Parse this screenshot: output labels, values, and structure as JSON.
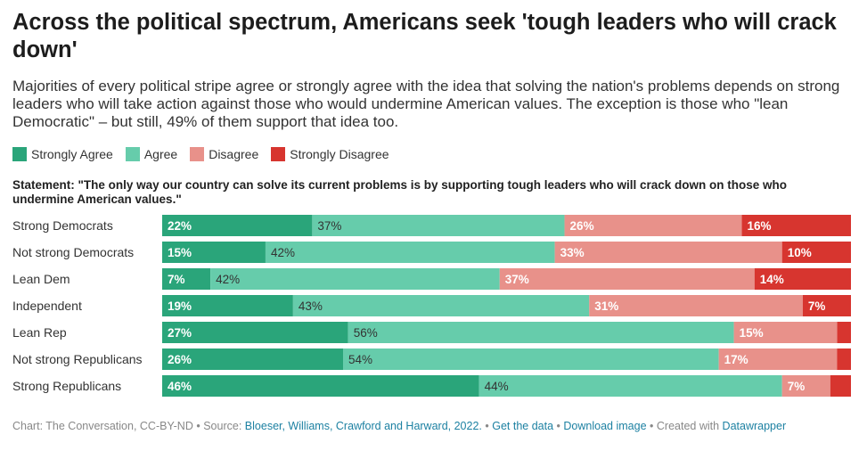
{
  "header": {
    "title": "Across the political spectrum, Americans seek 'tough leaders who will crack down'",
    "subtitle": "Majorities of every political stripe agree or strongly agree with the idea that solving the nation's problems depends on strong leaders who will take action against those who would undermine American values. The exception is those who \"lean Democratic\" – but still, 49% of them support that idea too."
  },
  "statement": "Statement: \"The only way our country can solve its current problems is by supporting tough leaders who will crack down on those who undermine American values.\"",
  "footer": {
    "credit": "Chart: The Conversation, CC-BY-ND",
    "source_prefix": "Source:",
    "source_link": "Bloeser, Williams, Crawford and Harward, 2022.",
    "get_data": "Get the data",
    "download": "Download image",
    "created_prefix": "Created with",
    "datawrapper": "Datawrapper",
    "separator": "•"
  },
  "chart_data": {
    "type": "bar",
    "orientation": "horizontal",
    "stacked": true,
    "unit": "%",
    "categories": [
      "Strong Democrats",
      "Not strong Democrats",
      "Lean Dem",
      "Independent",
      "Lean Rep",
      "Not strong Republicans",
      "Strong Republicans"
    ],
    "series": [
      {
        "name": "Strongly Agree",
        "color": "#2aa57a",
        "label_color": "#ffffff",
        "values": [
          22,
          15,
          7,
          19,
          27,
          26,
          46
        ]
      },
      {
        "name": "Agree",
        "color": "#66ccab",
        "label_color": "#333333",
        "values": [
          37,
          42,
          42,
          43,
          56,
          54,
          44
        ]
      },
      {
        "name": "Disagree",
        "color": "#e8918a",
        "label_color": "#ffffff",
        "values": [
          26,
          33,
          37,
          31,
          15,
          17,
          7
        ]
      },
      {
        "name": "Strongly Disagree",
        "color": "#d7352f",
        "label_color": "#ffffff",
        "values": [
          16,
          10,
          14,
          7,
          2,
          2,
          3
        ]
      }
    ],
    "value_labels": [
      [
        "22%",
        "37%",
        "26%",
        "16%"
      ],
      [
        "15%",
        "42%",
        "33%",
        "10%"
      ],
      [
        "7%",
        "42%",
        "37%",
        "14%"
      ],
      [
        "19%",
        "43%",
        "31%",
        "7%"
      ],
      [
        "27%",
        "56%",
        "15%",
        ""
      ],
      [
        "26%",
        "54%",
        "17%",
        ""
      ],
      [
        "46%",
        "44%",
        "7%",
        ""
      ]
    ],
    "legend_position": "top-left",
    "grid": false
  }
}
